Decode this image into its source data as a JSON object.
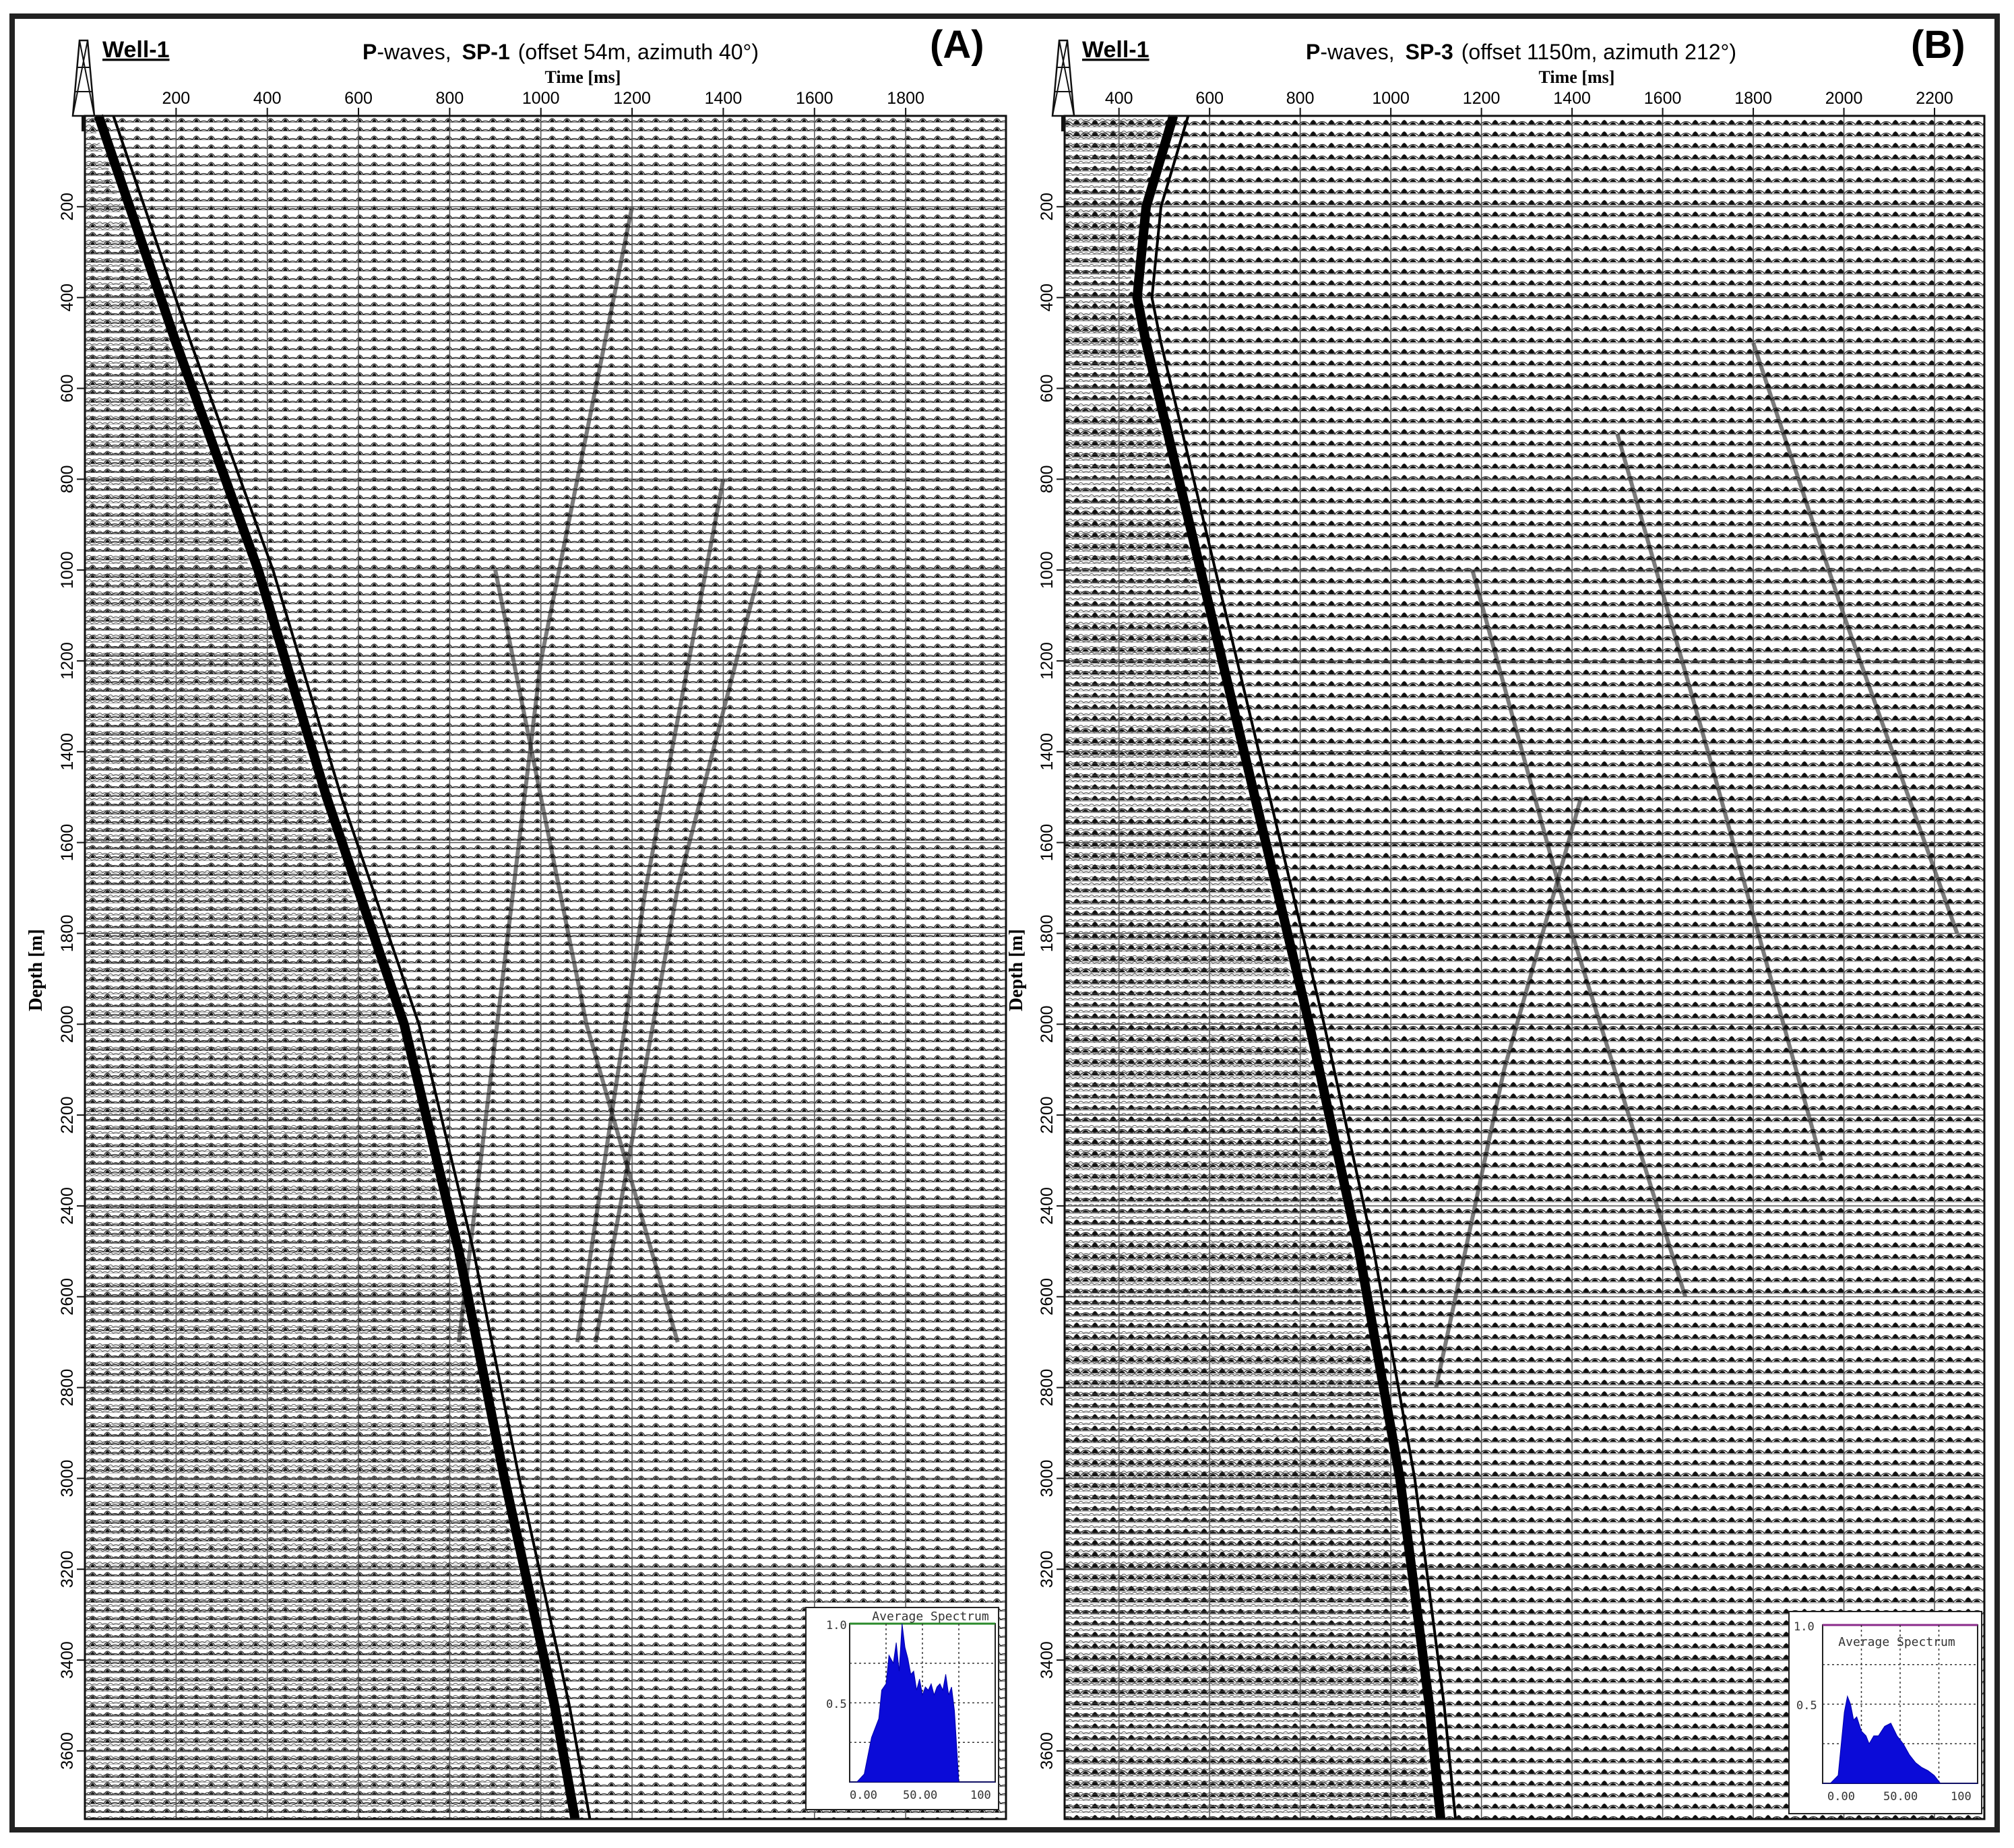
{
  "chart_data": [
    {
      "type": "seismic-wiggle-section",
      "panel_label": "(A)",
      "well": "Well-1",
      "title": {
        "wave": "P",
        "wave_suffix": "-waves,",
        "shot": "SP-1",
        "details": "(offset 54m, azimuth 40°)"
      },
      "xlabel": "Time [ms]",
      "ylabel": "Depth [m]",
      "xlim": [
        0,
        2020
      ],
      "ylim": [
        0,
        3750
      ],
      "xticks": [
        200,
        400,
        600,
        800,
        1000,
        1200,
        1400,
        1600,
        1800
      ],
      "yticks": [
        200,
        400,
        600,
        800,
        1000,
        1200,
        1400,
        1600,
        1800,
        2000,
        2200,
        2400,
        2600,
        2800,
        3000,
        3200,
        3400,
        3600
      ],
      "grid": true,
      "first_break": {
        "depth": [
          0,
          500,
          1000,
          1500,
          2000,
          2500,
          3000,
          3500,
          3750
        ],
        "time": [
          30,
          200,
          380,
          530,
          700,
          820,
          920,
          1030,
          1075
        ]
      },
      "inset": {
        "title": "Average Spectrum",
        "yticks": [
          "1.0",
          "0.5"
        ],
        "xticks": [
          "0.00",
          "50.00",
          "100"
        ],
        "freq": [
          0,
          5,
          10,
          15,
          20,
          22,
          25,
          27,
          30,
          32,
          34,
          36,
          38,
          40,
          42,
          44,
          46,
          48,
          50,
          52,
          54,
          56,
          58,
          60,
          62,
          64,
          66,
          68,
          70,
          72,
          75,
          80,
          90,
          100
        ],
        "amp": [
          0.0,
          0.0,
          0.05,
          0.28,
          0.4,
          0.58,
          0.62,
          0.8,
          0.75,
          0.88,
          0.7,
          1.0,
          0.85,
          0.78,
          0.68,
          0.7,
          0.58,
          0.65,
          0.55,
          0.6,
          0.58,
          0.62,
          0.55,
          0.6,
          0.62,
          0.58,
          0.68,
          0.55,
          0.6,
          0.45,
          0.0,
          0.0,
          0.0,
          0.0
        ]
      }
    },
    {
      "type": "seismic-wiggle-section",
      "panel_label": "(B)",
      "well": "Well-1",
      "title": {
        "wave": "P",
        "wave_suffix": "-waves,",
        "shot": "SP-3",
        "details": "(offset 1150m, azimuth 212°)"
      },
      "xlabel": "Time [ms]",
      "ylabel": "Depth [m]",
      "xlim": [
        280,
        2310
      ],
      "ylim": [
        0,
        3750
      ],
      "xticks": [
        400,
        600,
        800,
        1000,
        1200,
        1400,
        1600,
        1800,
        2000,
        2200
      ],
      "yticks": [
        200,
        400,
        600,
        800,
        1000,
        1200,
        1400,
        1600,
        1800,
        2000,
        2200,
        2400,
        2600,
        2800,
        3000,
        3200,
        3400,
        3600
      ],
      "grid": true,
      "first_break": {
        "depth": [
          0,
          200,
          400,
          500,
          1000,
          1500,
          2000,
          2500,
          3000,
          3500,
          3750
        ],
        "time": [
          520,
          460,
          440,
          460,
          580,
          700,
          820,
          930,
          1020,
          1085,
          1110
        ]
      },
      "inset": {
        "title": "Average Spectrum",
        "yticks": [
          "1.0",
          "0.5"
        ],
        "xticks": [
          "0.00",
          "50.00",
          "100"
        ],
        "freq": [
          0,
          5,
          10,
          12,
          14,
          16,
          18,
          20,
          22,
          25,
          28,
          30,
          33,
          36,
          40,
          44,
          48,
          52,
          56,
          60,
          64,
          68,
          72,
          76,
          80,
          90,
          100
        ],
        "amp": [
          0.0,
          0.0,
          0.05,
          0.25,
          0.45,
          0.55,
          0.5,
          0.4,
          0.42,
          0.33,
          0.3,
          0.25,
          0.3,
          0.3,
          0.36,
          0.38,
          0.3,
          0.25,
          0.18,
          0.13,
          0.1,
          0.08,
          0.05,
          0.0,
          0.0,
          0.0,
          0.0
        ]
      }
    }
  ]
}
